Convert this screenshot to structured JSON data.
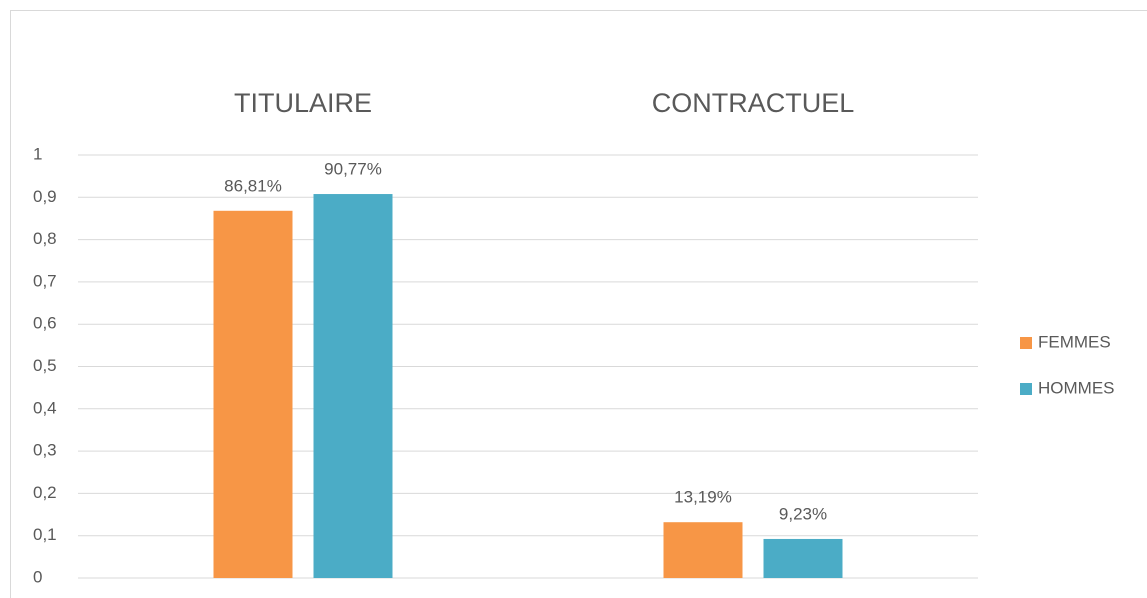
{
  "chart_data": {
    "type": "bar",
    "categories": [
      "TITULAIRE",
      "CONTRACTUEL"
    ],
    "series": [
      {
        "name": "FEMMES",
        "color": "#f79646",
        "values": [
          0.8681,
          0.1319
        ],
        "value_labels": [
          "86,81%",
          "13,19%"
        ]
      },
      {
        "name": "HOMMES",
        "color": "#4bacc6",
        "values": [
          0.9077,
          0.0923
        ],
        "value_labels": [
          "90,77%",
          "9,23%"
        ]
      }
    ],
    "ylim": [
      0,
      1
    ],
    "yticks": [
      0,
      {
        "value": 0.1,
        "label": "0,1"
      },
      {
        "value": 0.2,
        "label": "0,2"
      },
      {
        "value": 0.3,
        "label": "0,3"
      },
      {
        "value": 0.4,
        "label": "0,4"
      },
      {
        "value": 0.5,
        "label": "0,5"
      },
      {
        "value": 0.6,
        "label": "0,6"
      },
      {
        "value": 0.7,
        "label": "0,7"
      },
      {
        "value": 0.8,
        "label": "0,8"
      },
      {
        "value": 0.9,
        "label": "0,9"
      },
      1
    ],
    "grid": true,
    "legend": "right"
  }
}
